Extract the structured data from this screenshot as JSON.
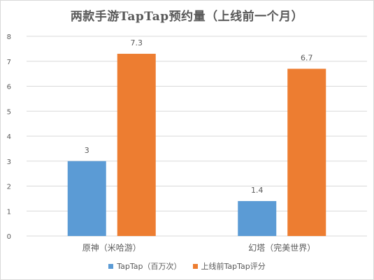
{
  "chart_data": {
    "type": "bar",
    "title": "两款手游TapTap预约量（上线前一个月）",
    "categories": [
      "原神（米哈游）",
      "幻塔（完美世界）"
    ],
    "series": [
      {
        "name": "TapTap（百万次）",
        "values": [
          3,
          1.4
        ],
        "labels": [
          "3",
          "1.4"
        ],
        "color": "#5b9bd5"
      },
      {
        "name": "上线前TapTap评分",
        "values": [
          7.3,
          6.7
        ],
        "labels": [
          "7.3",
          "6.7"
        ],
        "color": "#ed7d31"
      }
    ],
    "ylim": [
      0,
      8
    ],
    "yticks": [
      "0",
      "1",
      "2",
      "3",
      "4",
      "5",
      "6",
      "7",
      "8"
    ],
    "grid": true,
    "legend": "bottom"
  },
  "colors": {
    "grid": "#d9d9d9",
    "axis_text": "#595959"
  }
}
